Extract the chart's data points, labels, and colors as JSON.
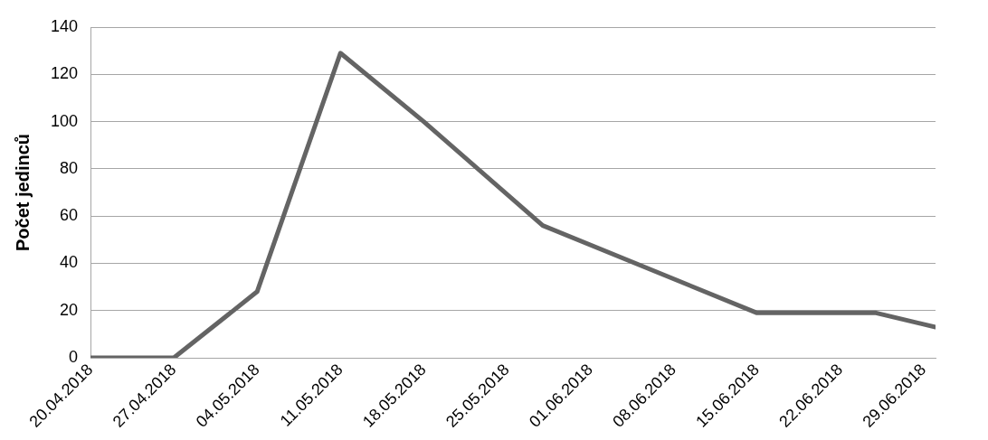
{
  "chart_data": {
    "type": "line",
    "ylabel": "Počet jedinců",
    "x": [
      "2018-04-20",
      "2018-04-27",
      "2018-05-04",
      "2018-05-11",
      "2018-05-18",
      "2018-05-28",
      "2018-06-15",
      "2018-06-25",
      "2018-06-30"
    ],
    "series": [
      {
        "color": "#646464",
        "values": [
          0,
          0,
          28,
          129,
          100,
          56,
          19,
          19,
          13
        ]
      }
    ],
    "xlim": [
      "2018-04-20",
      "2018-06-30"
    ],
    "xticks": [
      {
        "value": "2018-04-20",
        "label": "20.04.2018"
      },
      {
        "value": "2018-04-27",
        "label": "27.04.2018"
      },
      {
        "value": "2018-05-04",
        "label": "04.05.2018"
      },
      {
        "value": "2018-05-11",
        "label": "11.05.2018"
      },
      {
        "value": "2018-05-18",
        "label": "18.05.2018"
      },
      {
        "value": "2018-05-25",
        "label": "25.05.2018"
      },
      {
        "value": "2018-06-01",
        "label": "01.06.2018"
      },
      {
        "value": "2018-06-08",
        "label": "08.06.2018"
      },
      {
        "value": "2018-06-15",
        "label": "15.06.2018"
      },
      {
        "value": "2018-06-22",
        "label": "22.06.2018"
      },
      {
        "value": "2018-06-29",
        "label": "29.06.2018"
      }
    ],
    "ylim": [
      0,
      140
    ],
    "yticks": [
      0,
      20,
      40,
      60,
      80,
      100,
      120,
      140
    ],
    "grid": "y",
    "legend": false,
    "marker": "none",
    "line_style": "solid"
  }
}
